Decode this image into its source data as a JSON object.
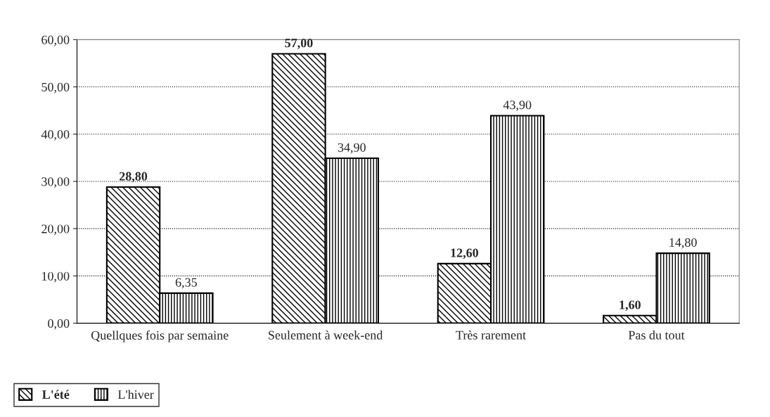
{
  "chart_data": {
    "type": "bar",
    "categories": [
      "Quellques fois par semaine",
      "Seulement à week-end",
      "Très rarement",
      "Pas du tout"
    ],
    "series": [
      {
        "name": "L'été",
        "color": "#000000",
        "values": [
          28.8,
          57.0,
          12.6,
          1.6
        ],
        "value_labels": [
          "28,80",
          "57,00",
          "12,60",
          "1,60"
        ]
      },
      {
        "name": "L'hiver",
        "color": "#000000",
        "values": [
          6.35,
          34.9,
          43.9,
          14.8
        ],
        "value_labels": [
          "6,35",
          "34,90",
          "43,90",
          "14,80"
        ]
      }
    ],
    "ylim": [
      0,
      60
    ],
    "yticks": [
      {
        "value": 0,
        "label": "0,00"
      },
      {
        "value": 10,
        "label": "10,00"
      },
      {
        "value": 20,
        "label": "20,00"
      },
      {
        "value": 30,
        "label": "30,00"
      },
      {
        "value": 40,
        "label": "40,00"
      },
      {
        "value": 50,
        "label": "50,00"
      },
      {
        "value": 60,
        "label": "60,00"
      }
    ],
    "grid": "y",
    "legend": "bottom left"
  }
}
